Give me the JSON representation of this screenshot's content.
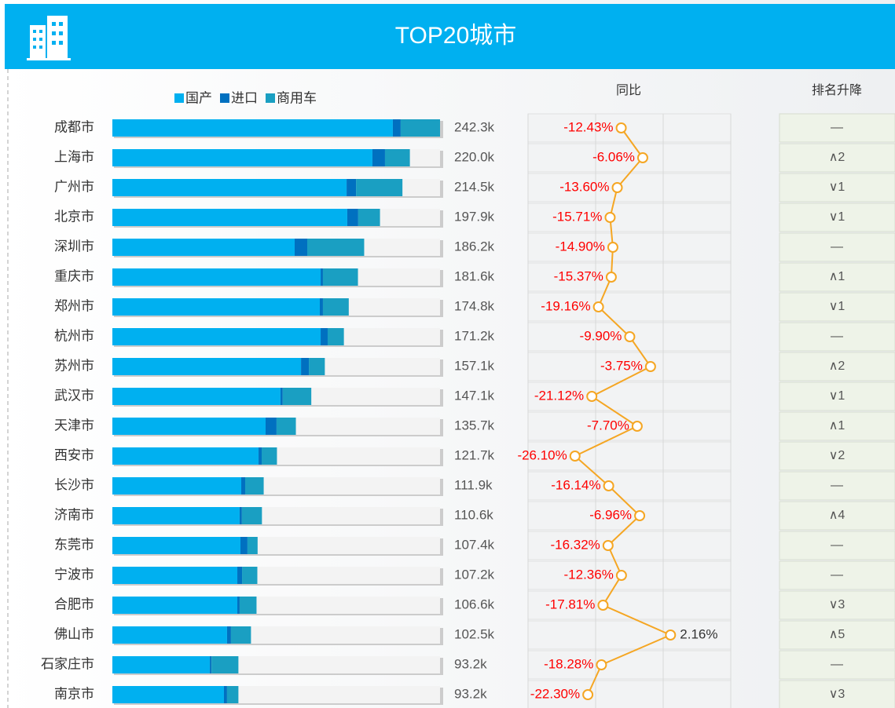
{
  "header": {
    "title": "TOP20城市"
  },
  "chart_data": [
    {
      "type": "bar",
      "orientation": "horizontal",
      "stacked": true,
      "categories": [
        "成都市",
        "上海市",
        "广州市",
        "北京市",
        "深圳市",
        "重庆市",
        "郑州市",
        "杭州市",
        "苏州市",
        "武汉市",
        "天津市",
        "西安市",
        "长沙市",
        "济南市",
        "东莞市",
        "宁波市",
        "合肥市",
        "佛山市",
        "石家庄市",
        "南京市"
      ],
      "series": [
        {
          "name": "国产",
          "color": "#00b0f0",
          "values": [
            207.4,
            192.3,
            173.2,
            173.7,
            134.8,
            154.0,
            153.4,
            154.0,
            139.5,
            124.3,
            113.3,
            108.1,
            95.3,
            94.1,
            94.7,
            92.4,
            92.4,
            84.8,
            72.1,
            82.5
          ]
        },
        {
          "name": "进口",
          "color": "#0070c0",
          "values": [
            5.8,
            9.3,
            7.0,
            8.1,
            9.3,
            1.7,
            2.3,
            5.2,
            5.8,
            1.7,
            8.1,
            2.3,
            2.9,
            1.7,
            5.2,
            3.5,
            1.7,
            2.9,
            1.2,
            2.3
          ]
        },
        {
          "name": "商用车",
          "color": "#1a9fc2",
          "values": [
            29.1,
            18.4,
            34.3,
            16.1,
            42.1,
            25.9,
            19.1,
            12.0,
            11.8,
            21.1,
            14.3,
            11.3,
            13.7,
            14.8,
            7.5,
            11.3,
            12.5,
            14.8,
            19.9,
            8.4
          ]
        }
      ],
      "totals": {
        "values": [
          242.3,
          220.0,
          214.5,
          197.9,
          186.2,
          181.6,
          174.8,
          171.2,
          157.1,
          147.1,
          135.7,
          121.7,
          111.9,
          110.6,
          107.4,
          107.2,
          106.6,
          102.5,
          93.2,
          93.2
        ],
        "value_labels": [
          "242.3k",
          "220.0k",
          "214.5k",
          "197.9k",
          "186.2k",
          "181.6k",
          "174.8k",
          "171.2k",
          "157.1k",
          "147.1k",
          "135.7k",
          "121.7k",
          "111.9k",
          "110.6k",
          "107.4k",
          "107.2k",
          "106.6k",
          "102.5k",
          "93.2k",
          "93.2k"
        ]
      }
    },
    {
      "type": "line",
      "title": "同比",
      "color": "#f5a623",
      "xlim": [
        -40,
        20
      ],
      "xticks": [
        -40,
        -20,
        0,
        20
      ],
      "values": [
        -12.43,
        -6.06,
        -13.6,
        -15.71,
        -14.9,
        -15.37,
        -19.16,
        -9.9,
        -3.75,
        -21.12,
        -7.7,
        -26.1,
        -16.14,
        -6.96,
        -16.32,
        -12.36,
        -17.81,
        2.16,
        -18.28,
        -22.3
      ],
      "value_labels": [
        "-12.43%",
        "-6.06%",
        "-13.60%",
        "-15.71%",
        "-14.90%",
        "-15.37%",
        "-19.16%",
        "-9.90%",
        "-3.75%",
        "-21.12%",
        "-7.70%",
        "-26.10%",
        "-16.14%",
        "-6.96%",
        "-16.32%",
        "-12.36%",
        "-17.81%",
        "2.16%",
        "-18.28%",
        "-22.30%"
      ]
    }
  ],
  "rank_table": {
    "title": "排名升降",
    "values": [
      "—",
      "∧2",
      "∨1",
      "∨1",
      "—",
      "∧1",
      "∨1",
      "—",
      "∧2",
      "∨1",
      "∧1",
      "∨2",
      "—",
      "∧4",
      "—",
      "—",
      "∨3",
      "∧5",
      "—",
      "∨3"
    ]
  }
}
